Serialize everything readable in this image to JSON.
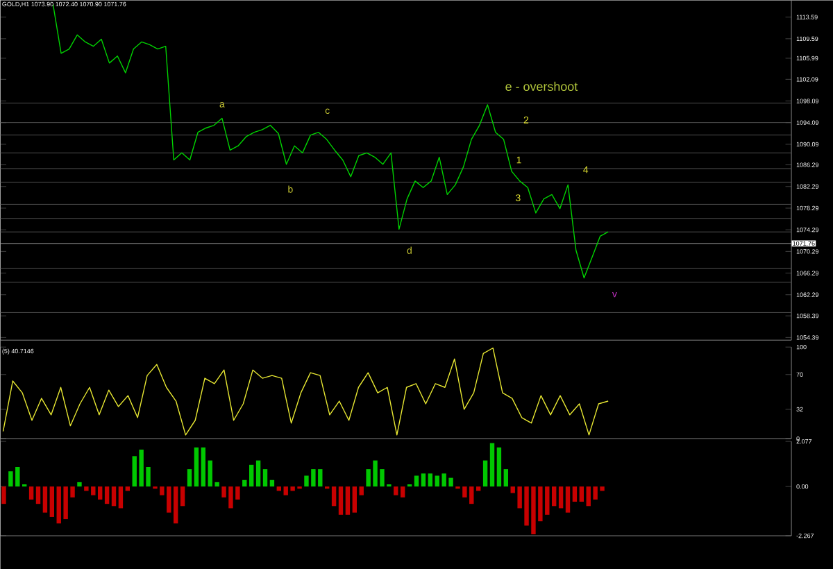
{
  "chart_data": [
    {
      "type": "line",
      "title": "GOLD,H1 1073.90 1072.40 1070.90 1071.76",
      "tick_labels": "y",
      "categories": [
        null,
        null,
        null,
        null,
        null,
        null,
        null,
        null,
        null,
        null,
        null,
        null,
        null,
        null,
        null,
        null,
        null,
        null,
        null,
        null,
        null,
        null,
        null,
        null,
        null,
        null,
        null,
        null,
        null,
        null,
        null,
        null,
        null,
        null,
        null,
        null,
        null,
        null,
        null,
        null,
        null,
        null,
        null,
        null,
        null,
        null,
        null,
        null,
        null,
        null,
        null,
        null,
        null,
        null,
        null,
        null,
        null,
        null,
        null,
        null,
        null,
        null,
        null,
        null,
        null,
        null,
        null,
        null,
        null,
        null
      ],
      "series": [
        {
          "color": "#00d200",
          "values": [
            1115.9,
            1106.9,
            1107.7,
            1110.3,
            1109.0,
            1108.2,
            1109.5,
            1105.1,
            1106.4,
            1103.3,
            1107.7,
            1109.0,
            1108.5,
            1107.7,
            1108.2,
            1087.2,
            1088.5,
            1087.2,
            1092.3,
            1093.1,
            1093.6,
            1094.9,
            1089.0,
            1089.8,
            1091.5,
            1092.3,
            1092.8,
            1093.6,
            1092.1,
            1086.4,
            1089.8,
            1088.5,
            1091.8,
            1092.3,
            1091.0,
            1089.0,
            1087.2,
            1084.1,
            1088.0,
            1088.5,
            1087.7,
            1086.4,
            1088.5,
            1074.4,
            1080.0,
            1083.3,
            1082.1,
            1083.3,
            1087.7,
            1080.8,
            1082.6,
            1085.9,
            1091.0,
            1093.6,
            1097.4,
            1092.3,
            1091.0,
            1085.1,
            1083.3,
            1082.1,
            1077.4,
            1080.0,
            1080.8,
            1078.2,
            1082.6,
            1070.5,
            1065.4,
            1069.2,
            1073.1,
            1073.9
          ]
        }
      ],
      "ylim": [
        1053.9,
        1116.7
      ],
      "yticks": [
        1054.39,
        1058.39,
        1062.29,
        1066.29,
        1070.29,
        1074.29,
        1078.29,
        1082.29,
        1086.29,
        1090.09,
        1094.09,
        1098.09,
        1102.09,
        1105.99,
        1109.59,
        1113.59
      ],
      "ref_lines": [
        {
          "axis": "y",
          "value": 1097.7,
          "color": "#505050"
        },
        {
          "axis": "y",
          "value": 1094.1,
          "color": "#505050"
        },
        {
          "axis": "y",
          "value": 1091.8,
          "color": "#505050"
        },
        {
          "axis": "y",
          "value": 1088.5,
          "color": "#505050"
        },
        {
          "axis": "y",
          "value": 1085.6,
          "color": "#505050"
        },
        {
          "axis": "y",
          "value": 1083.1,
          "color": "#505050"
        },
        {
          "axis": "y",
          "value": 1079.0,
          "color": "#505050"
        },
        {
          "axis": "y",
          "value": 1076.4,
          "color": "#505050"
        },
        {
          "axis": "y",
          "value": 1073.9,
          "color": "#505050"
        },
        {
          "axis": "y",
          "value": 1067.2,
          "color": "#505050"
        },
        {
          "axis": "y",
          "value": 1064.6,
          "color": "#505050"
        },
        {
          "axis": "y",
          "value": 1059.0,
          "color": "#505050"
        },
        {
          "axis": "y",
          "value": 1071.76,
          "label": "1071.76",
          "color": "#a0a0a0"
        }
      ],
      "annotations": [
        "a",
        "c",
        "b",
        "d",
        "e - overshoot",
        "2",
        "1",
        "3",
        "4",
        "v"
      ]
    },
    {
      "type": "line",
      "title": "(5) 40.7146",
      "tick_labels": "y",
      "categories": [
        null,
        null,
        null,
        null,
        null,
        null,
        null,
        null,
        null,
        null,
        null,
        null,
        null,
        null,
        null,
        null,
        null,
        null,
        null,
        null,
        null,
        null,
        null,
        null,
        null,
        null,
        null,
        null,
        null,
        null,
        null,
        null,
        null,
        null,
        null,
        null,
        null,
        null,
        null,
        null,
        null,
        null,
        null,
        null,
        null,
        null,
        null,
        null,
        null,
        null,
        null,
        null,
        null,
        null,
        null,
        null,
        null,
        null,
        null,
        null,
        null,
        null,
        null,
        null
      ],
      "series": [
        {
          "color": "#e6e632",
          "values": [
            8,
            63,
            50,
            20,
            44,
            26,
            56,
            14,
            38,
            56,
            26,
            53,
            35,
            47,
            23,
            69,
            81,
            56,
            41,
            4,
            20,
            66,
            60,
            75,
            20,
            38,
            75,
            66,
            69,
            66,
            17,
            50,
            72,
            69,
            26,
            41,
            20,
            56,
            72,
            50,
            56,
            4,
            56,
            60,
            38,
            60,
            56,
            87,
            32,
            50,
            93,
            99,
            50,
            44,
            23,
            17,
            47,
            26,
            47,
            26,
            38,
            4,
            38,
            41
          ]
        }
      ],
      "ylim": [
        0,
        100
      ],
      "yticks": [
        0,
        32,
        70,
        100
      ]
    },
    {
      "type": "bar",
      "tick_labels": "y",
      "categories": [
        null,
        null,
        null,
        null,
        null,
        null,
        null,
        null,
        null,
        null,
        null,
        null,
        null,
        null,
        null,
        null,
        null,
        null,
        null,
        null,
        null,
        null,
        null,
        null,
        null,
        null,
        null,
        null,
        null,
        null,
        null,
        null,
        null,
        null,
        null,
        null,
        null,
        null,
        null,
        null,
        null,
        null,
        null,
        null,
        null,
        null,
        null,
        null,
        null,
        null,
        null,
        null,
        null,
        null,
        null,
        null,
        null,
        null,
        null,
        null,
        null,
        null,
        null,
        null,
        null,
        null,
        null,
        null,
        null,
        null,
        null,
        null,
        null,
        null,
        null,
        null,
        null,
        null,
        null,
        null,
        null,
        null,
        null,
        null,
        null,
        null,
        null,
        null,
        null,
        null,
        null,
        null,
        null,
        null,
        null,
        null,
        null,
        null,
        null,
        null,
        null,
        null,
        null,
        null,
        null,
        null,
        null,
        null,
        null,
        null,
        null,
        null,
        null,
        null,
        null
      ],
      "values": [
        -0.8,
        0.7,
        0.9,
        0.1,
        -0.6,
        -0.8,
        -1.2,
        -1.4,
        -1.7,
        -1.5,
        -0.5,
        0.2,
        -0.2,
        -0.4,
        -0.6,
        -0.8,
        -0.9,
        -1.0,
        -0.2,
        1.4,
        1.7,
        0.9,
        -0.1,
        -0.4,
        -1.2,
        -1.7,
        -0.9,
        0.8,
        1.8,
        1.8,
        1.2,
        0.2,
        -0.5,
        -1.0,
        -0.6,
        0.3,
        1.0,
        1.2,
        0.8,
        0.3,
        -0.2,
        -0.4,
        -0.2,
        -0.1,
        0.5,
        0.8,
        0.8,
        -0.1,
        -0.9,
        -1.3,
        -1.3,
        -1.2,
        -0.4,
        0.8,
        1.2,
        0.8,
        0.1,
        -0.4,
        -0.5,
        0.1,
        0.5,
        0.6,
        0.6,
        0.5,
        0.6,
        0.4,
        -0.1,
        -0.5,
        -0.8,
        -0.2,
        1.2,
        2.0,
        1.8,
        0.8,
        -0.3,
        -1.0,
        -1.8,
        -2.2,
        -1.6,
        -1.3,
        -0.9,
        -1.0,
        -1.2,
        -0.7,
        -0.7,
        -0.9,
        -0.6,
        -0.2,
        null,
        null,
        null,
        null,
        null,
        null,
        null,
        null,
        null,
        null,
        null,
        null,
        null,
        null,
        null,
        null,
        null,
        null,
        null,
        null,
        null,
        null,
        null,
        null,
        null,
        null,
        null
      ],
      "colors": [
        "#c80000",
        "#00c800",
        "#00c800",
        "#00c800",
        "#c80000",
        "#c80000",
        "#c80000",
        "#c80000",
        "#c80000",
        "#c80000",
        "#c80000",
        "#00c800",
        "#c80000",
        "#c80000",
        "#c80000",
        "#c80000",
        "#c80000",
        "#c80000",
        "#c80000",
        "#00c800",
        "#00c800",
        "#00c800",
        "#c80000",
        "#c80000",
        "#c80000",
        "#c80000",
        "#c80000",
        "#00c800",
        "#00c800",
        "#00c800",
        "#00c800",
        "#00c800",
        "#c80000",
        "#c80000",
        "#c80000",
        "#00c800",
        "#00c800",
        "#00c800",
        "#00c800",
        "#00c800",
        "#c80000",
        "#c80000",
        "#c80000",
        "#c80000",
        "#00c800",
        "#00c800",
        "#00c800",
        "#c80000",
        "#c80000",
        "#c80000",
        "#c80000",
        "#c80000",
        "#c80000",
        "#00c800",
        "#00c800",
        "#00c800",
        "#00c800",
        "#c80000",
        "#c80000",
        "#00c800",
        "#00c800",
        "#00c800",
        "#00c800",
        "#00c800",
        "#00c800",
        "#00c800",
        "#c80000",
        "#c80000",
        "#c80000",
        "#c80000",
        "#00c800",
        "#00c800",
        "#00c800",
        "#00c800",
        "#c80000",
        "#c80000",
        "#c80000",
        "#c80000",
        "#c80000",
        "#c80000",
        "#c80000",
        "#c80000",
        "#c80000",
        "#c80000",
        "#c80000",
        "#c80000",
        "#c80000",
        "#c80000",
        null,
        null,
        null,
        null,
        null,
        null,
        null,
        null,
        null,
        null,
        null,
        null,
        null,
        null,
        null,
        null,
        null,
        null,
        null,
        null,
        null,
        null,
        null,
        null,
        null,
        null,
        null
      ],
      "ylim": [
        -2.267,
        2.077
      ],
      "yticks": [
        -2.267,
        {
          "value": 0,
          "label": "0.00"
        },
        2.077
      ]
    }
  ]
}
